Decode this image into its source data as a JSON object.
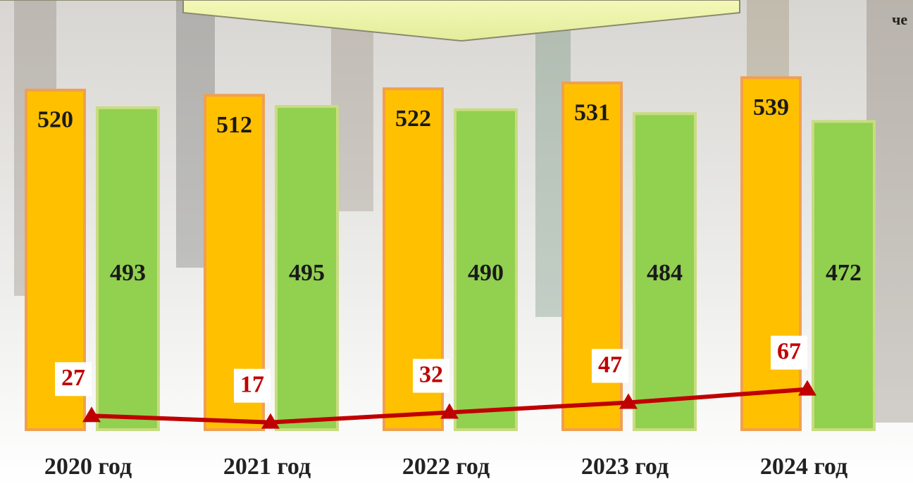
{
  "chart_data": {
    "type": "bar",
    "annotation": "че",
    "categories": [
      "2020 год",
      "2021 год",
      "2022 год",
      "2023 год",
      "2024 год"
    ],
    "series": [
      {
        "color": "#ffc000",
        "values": [
          520,
          512,
          522,
          531,
          539
        ]
      },
      {
        "color": "#92d050",
        "values": [
          493,
          495,
          490,
          484,
          472
        ]
      },
      {
        "color": "#c00000",
        "values": [
          27,
          17,
          32,
          47,
          67
        ],
        "axis": "y2",
        "type": "line"
      }
    ],
    "ylim": [
      0,
      658
    ],
    "y2lim": [
      6,
      655
    ]
  }
}
